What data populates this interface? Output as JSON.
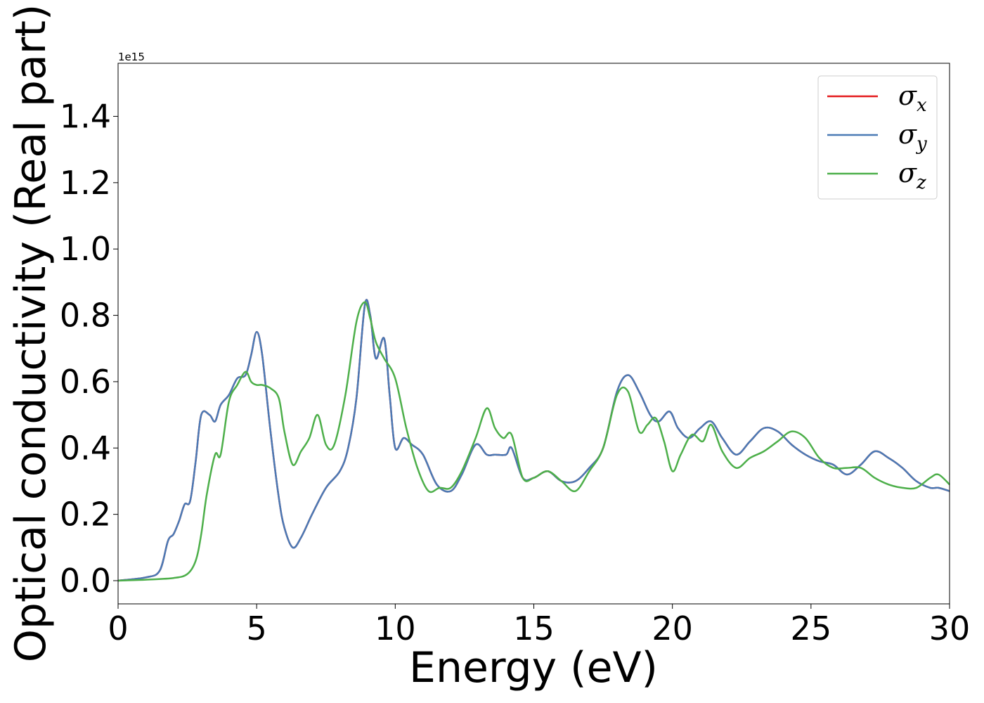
{
  "chart_data": {
    "type": "line",
    "title": "",
    "xlabel": "Energy (eV)",
    "ylabel": "Optical conductivity (Real part)",
    "y_offset_label": "1e15",
    "y_scale_factor": 1000000000000000.0,
    "xlim": [
      0,
      30
    ],
    "ylim": [
      -0.07,
      1.56
    ],
    "xticks": [
      0,
      5,
      10,
      15,
      20,
      25,
      30
    ],
    "xtick_labels": [
      "0",
      "5",
      "10",
      "15",
      "20",
      "25",
      "30"
    ],
    "yticks": [
      0.0,
      0.2,
      0.4,
      0.6,
      0.8,
      1.0,
      1.2,
      1.4
    ],
    "ytick_labels": [
      "0.0",
      "0.2",
      "0.4",
      "0.6",
      "0.8",
      "1.0",
      "1.2",
      "1.4"
    ],
    "grid": false,
    "legend_position": "top-right",
    "series": [
      {
        "name": "σx",
        "symbol": "σ",
        "subscript": "x",
        "color": "#e41a1c",
        "x": [
          0,
          1,
          1.5,
          1.8,
          2.0,
          2.2,
          2.4,
          2.6,
          2.8,
          3.0,
          3.3,
          3.5,
          3.7,
          4.0,
          4.3,
          4.6,
          4.8,
          5.0,
          5.2,
          5.5,
          5.8,
          6.0,
          6.3,
          6.6,
          7.0,
          7.5,
          8.0,
          8.3,
          8.6,
          8.9,
          9.1,
          9.3,
          9.6,
          9.8,
          10.0,
          10.3,
          10.6,
          11.0,
          11.5,
          12.0,
          12.4,
          12.9,
          13.3,
          13.6,
          14.0,
          14.2,
          14.6,
          15.0,
          15.5,
          16.0,
          16.5,
          17.0,
          17.5,
          18.0,
          18.4,
          18.8,
          19.2,
          19.5,
          19.9,
          20.2,
          20.6,
          21.0,
          21.4,
          21.8,
          22.3,
          22.8,
          23.3,
          23.8,
          24.3,
          24.8,
          25.3,
          25.8,
          26.3,
          26.8,
          27.3,
          27.8,
          28.3,
          28.8,
          29.3,
          29.6,
          30
        ],
        "y": [
          0.0,
          0.01,
          0.03,
          0.12,
          0.14,
          0.18,
          0.23,
          0.24,
          0.36,
          0.5,
          0.5,
          0.48,
          0.53,
          0.56,
          0.61,
          0.62,
          0.68,
          0.75,
          0.68,
          0.45,
          0.25,
          0.16,
          0.1,
          0.13,
          0.2,
          0.28,
          0.33,
          0.4,
          0.55,
          0.83,
          0.8,
          0.67,
          0.73,
          0.56,
          0.4,
          0.43,
          0.41,
          0.38,
          0.29,
          0.27,
          0.32,
          0.41,
          0.38,
          0.38,
          0.38,
          0.4,
          0.31,
          0.31,
          0.33,
          0.3,
          0.3,
          0.34,
          0.4,
          0.57,
          0.62,
          0.57,
          0.5,
          0.48,
          0.51,
          0.46,
          0.43,
          0.46,
          0.48,
          0.43,
          0.38,
          0.42,
          0.46,
          0.45,
          0.41,
          0.38,
          0.36,
          0.35,
          0.32,
          0.35,
          0.39,
          0.37,
          0.34,
          0.3,
          0.28,
          0.28,
          0.27
        ]
      },
      {
        "name": "σy",
        "symbol": "σ",
        "subscript": "y",
        "color": "#4a7ab5",
        "x": [
          0,
          1,
          1.5,
          1.8,
          2.0,
          2.2,
          2.4,
          2.6,
          2.8,
          3.0,
          3.3,
          3.5,
          3.7,
          4.0,
          4.3,
          4.6,
          4.8,
          5.0,
          5.2,
          5.5,
          5.8,
          6.0,
          6.3,
          6.6,
          7.0,
          7.5,
          8.0,
          8.3,
          8.6,
          8.9,
          9.1,
          9.3,
          9.6,
          9.8,
          10.0,
          10.3,
          10.6,
          11.0,
          11.5,
          12.0,
          12.4,
          12.9,
          13.3,
          13.6,
          14.0,
          14.2,
          14.6,
          15.0,
          15.5,
          16.0,
          16.5,
          17.0,
          17.5,
          18.0,
          18.4,
          18.8,
          19.2,
          19.5,
          19.9,
          20.2,
          20.6,
          21.0,
          21.4,
          21.8,
          22.3,
          22.8,
          23.3,
          23.8,
          24.3,
          24.8,
          25.3,
          25.8,
          26.3,
          26.8,
          27.3,
          27.8,
          28.3,
          28.8,
          29.3,
          29.6,
          30
        ],
        "y": [
          0.0,
          0.01,
          0.03,
          0.12,
          0.14,
          0.18,
          0.23,
          0.24,
          0.36,
          0.5,
          0.5,
          0.48,
          0.53,
          0.56,
          0.61,
          0.62,
          0.68,
          0.75,
          0.68,
          0.45,
          0.25,
          0.16,
          0.1,
          0.13,
          0.2,
          0.28,
          0.33,
          0.4,
          0.55,
          0.83,
          0.8,
          0.67,
          0.73,
          0.56,
          0.4,
          0.43,
          0.41,
          0.38,
          0.29,
          0.27,
          0.32,
          0.41,
          0.38,
          0.38,
          0.38,
          0.4,
          0.31,
          0.31,
          0.33,
          0.3,
          0.3,
          0.34,
          0.4,
          0.57,
          0.62,
          0.57,
          0.5,
          0.48,
          0.51,
          0.46,
          0.43,
          0.46,
          0.48,
          0.43,
          0.38,
          0.42,
          0.46,
          0.45,
          0.41,
          0.38,
          0.36,
          0.35,
          0.32,
          0.35,
          0.39,
          0.37,
          0.34,
          0.3,
          0.28,
          0.28,
          0.27
        ]
      },
      {
        "name": "σz",
        "symbol": "σ",
        "subscript": "z",
        "color": "#4daf4a",
        "x": [
          0,
          1,
          2.0,
          2.5,
          2.8,
          3.0,
          3.2,
          3.5,
          3.7,
          4.0,
          4.3,
          4.6,
          4.8,
          5.0,
          5.2,
          5.5,
          5.8,
          6.0,
          6.3,
          6.6,
          6.9,
          7.2,
          7.5,
          7.8,
          8.2,
          8.6,
          8.9,
          9.1,
          9.3,
          9.6,
          10.0,
          10.4,
          10.8,
          11.2,
          11.6,
          12.0,
          12.4,
          12.9,
          13.3,
          13.6,
          13.9,
          14.2,
          14.6,
          15.0,
          15.5,
          16.0,
          16.5,
          17.0,
          17.5,
          18.0,
          18.4,
          18.8,
          19.1,
          19.4,
          19.7,
          20.0,
          20.3,
          20.7,
          21.1,
          21.4,
          21.8,
          22.3,
          22.8,
          23.3,
          23.8,
          24.3,
          24.8,
          25.3,
          25.8,
          26.3,
          26.8,
          27.3,
          27.8,
          28.3,
          28.8,
          29.3,
          29.6,
          30
        ],
        "y": [
          0.0,
          0.003,
          0.008,
          0.02,
          0.06,
          0.14,
          0.26,
          0.38,
          0.38,
          0.54,
          0.59,
          0.63,
          0.6,
          0.59,
          0.59,
          0.58,
          0.55,
          0.45,
          0.35,
          0.39,
          0.43,
          0.5,
          0.41,
          0.41,
          0.56,
          0.78,
          0.84,
          0.79,
          0.72,
          0.67,
          0.61,
          0.46,
          0.34,
          0.27,
          0.28,
          0.28,
          0.33,
          0.43,
          0.52,
          0.46,
          0.43,
          0.44,
          0.31,
          0.31,
          0.33,
          0.3,
          0.27,
          0.33,
          0.4,
          0.56,
          0.57,
          0.45,
          0.47,
          0.49,
          0.42,
          0.33,
          0.38,
          0.44,
          0.42,
          0.47,
          0.39,
          0.34,
          0.37,
          0.39,
          0.42,
          0.45,
          0.43,
          0.37,
          0.34,
          0.34,
          0.34,
          0.31,
          0.29,
          0.28,
          0.28,
          0.31,
          0.32,
          0.29
        ]
      }
    ]
  }
}
